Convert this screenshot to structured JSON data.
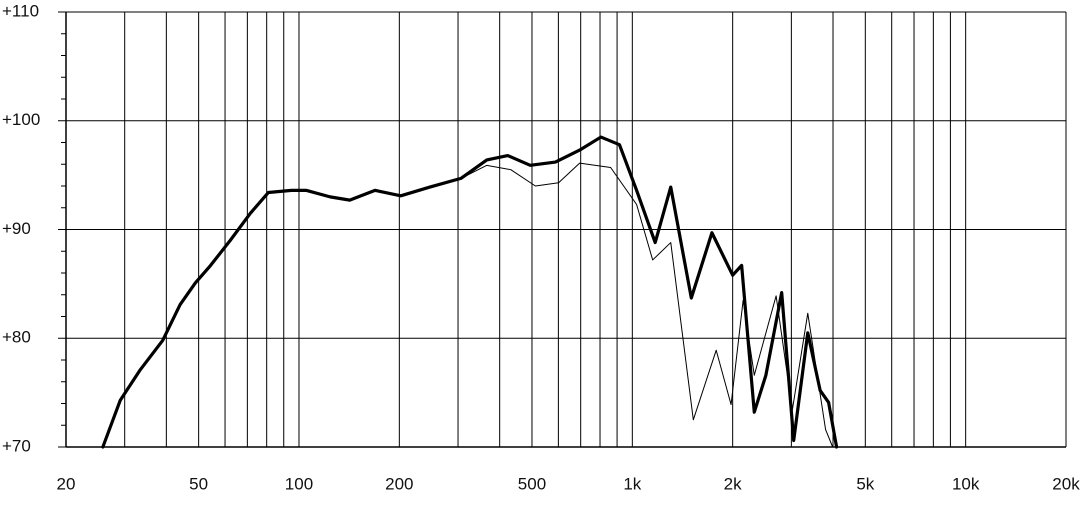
{
  "chart_data": {
    "type": "line",
    "xscale": "log",
    "xlim": [
      20,
      20000
    ],
    "xticks": [
      20,
      50,
      100,
      200,
      500,
      {
        "value": 1000,
        "label": "1k"
      },
      {
        "value": 2000,
        "label": "2k"
      },
      {
        "value": 5000,
        "label": "5k"
      },
      {
        "value": 10000,
        "label": "10k"
      },
      {
        "value": 20000,
        "label": "20k"
      }
    ],
    "xminorticks": [
      30,
      40,
      60,
      70,
      80,
      90,
      300,
      400,
      600,
      700,
      800,
      900,
      3000,
      4000,
      6000,
      7000,
      8000,
      9000
    ],
    "ylim": [
      70,
      110
    ],
    "yticks": [
      {
        "value": 70,
        "label": "+70"
      },
      {
        "value": 80,
        "label": "+80"
      },
      {
        "value": 90,
        "label": "+90"
      },
      {
        "value": 100,
        "label": "+100"
      },
      {
        "value": 110,
        "label": "+110"
      }
    ],
    "yminorticks": [
      72,
      74,
      76,
      78,
      82,
      84,
      86,
      88,
      92,
      94,
      96,
      98,
      102,
      104,
      106,
      108
    ],
    "grid": true,
    "series": [
      {
        "color": "#000000",
        "line_width": 1,
        "x": [
          25.8,
          29.1,
          33.4,
          39.0,
          44.0,
          48.9,
          54.3,
          62.2,
          71.5,
          80.9,
          94.9,
          105,
          124,
          142,
          169,
          202,
          247,
          306,
          366,
          432,
          512,
          601,
          695,
          861,
          1030,
          1151,
          1304,
          1524,
          1785,
          1978,
          2150,
          2322,
          2700,
          3020,
          3360,
          3800,
          3990
        ],
        "values": [
          70,
          74.3,
          77.1,
          79.8,
          83.1,
          85.1,
          86.7,
          89.0,
          91.5,
          93.4,
          93.6,
          93.6,
          93.0,
          92.7,
          93.6,
          93.1,
          93.9,
          94.7,
          95.9,
          95.5,
          94.0,
          94.3,
          96.1,
          95.7,
          92.3,
          87.2,
          88.8,
          72.5,
          78.9,
          73.9,
          83.5,
          76.6,
          83.9,
          73.4,
          82.3,
          71.6,
          70
        ]
      },
      {
        "color": "#000000",
        "line_width": 3.2,
        "x": [
          25.8,
          29.1,
          33.4,
          39.0,
          44.0,
          48.9,
          54.3,
          62.2,
          71.5,
          80.9,
          94.9,
          105,
          124,
          142,
          169,
          202,
          247,
          306,
          366,
          423,
          494,
          588,
          695,
          805,
          915,
          1030,
          1171,
          1304,
          1503,
          1733,
          2000,
          2128,
          2322,
          2516,
          2806,
          3049,
          3360,
          3660,
          3880,
          4100
        ],
        "values": [
          70,
          74.3,
          77.1,
          79.8,
          83.1,
          85.1,
          86.7,
          89.0,
          91.5,
          93.4,
          93.6,
          93.6,
          93.0,
          92.7,
          93.6,
          93.1,
          93.9,
          94.7,
          96.4,
          96.8,
          95.9,
          96.2,
          97.3,
          98.5,
          97.8,
          93.6,
          88.8,
          93.9,
          83.7,
          89.7,
          85.8,
          86.7,
          73.2,
          76.6,
          84.2,
          70.6,
          80.5,
          75.2,
          74.1,
          70
        ]
      }
    ]
  }
}
